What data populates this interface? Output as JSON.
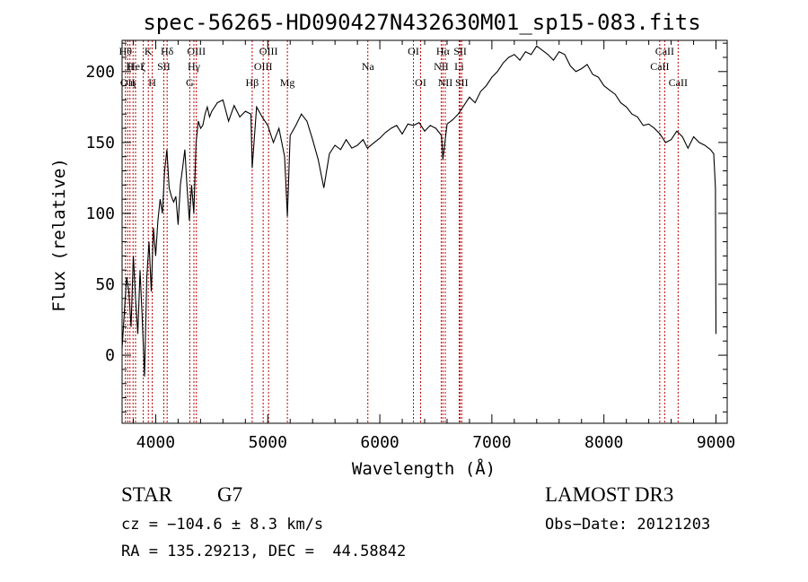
{
  "chart_data": {
    "type": "line",
    "title": "spec-56265-HD090427N432630M01_sp15-083.fits",
    "xlabel": "Wavelength (Å)",
    "ylabel": "Flux (relative)",
    "xlim": [
      3700,
      9100
    ],
    "ylim": [
      -48,
      222
    ],
    "xticks": [
      4000,
      5000,
      6000,
      7000,
      8000,
      9000
    ],
    "yticks": [
      0,
      50,
      100,
      150,
      200
    ],
    "grid": false,
    "series": [
      {
        "x": [
          3700,
          3720,
          3740,
          3760,
          3780,
          3800,
          3820,
          3840,
          3860,
          3880,
          3900,
          3920,
          3940,
          3960,
          3980,
          4000,
          4020,
          4040,
          4060,
          4080,
          4100,
          4120,
          4140,
          4160,
          4180,
          4200,
          4220,
          4240,
          4260,
          4280,
          4300,
          4320,
          4340,
          4360,
          4380,
          4400,
          4420,
          4440,
          4460,
          4480,
          4500,
          4550,
          4600,
          4650,
          4700,
          4750,
          4800,
          4850,
          4861,
          4900,
          4950,
          5000,
          5050,
          5100,
          5150,
          5175,
          5200,
          5250,
          5300,
          5350,
          5400,
          5450,
          5500,
          5550,
          5600,
          5650,
          5700,
          5750,
          5800,
          5850,
          5890,
          5950,
          6000,
          6050,
          6100,
          6150,
          6200,
          6250,
          6300,
          6350,
          6400,
          6450,
          6500,
          6550,
          6563,
          6600,
          6650,
          6700,
          6750,
          6800,
          6850,
          6900,
          6950,
          7000,
          7050,
          7100,
          7150,
          7200,
          7250,
          7300,
          7350,
          7400,
          7450,
          7500,
          7550,
          7600,
          7650,
          7700,
          7750,
          7800,
          7850,
          7900,
          7950,
          8000,
          8050,
          8100,
          8150,
          8200,
          8250,
          8300,
          8350,
          8400,
          8450,
          8500,
          8550,
          8600,
          8650,
          8700,
          8750,
          8800,
          8850,
          8900,
          8950,
          8980,
          8995,
          9000
        ],
        "y": [
          5,
          30,
          55,
          45,
          20,
          70,
          40,
          15,
          60,
          25,
          -15,
          55,
          80,
          45,
          90,
          70,
          95,
          110,
          100,
          130,
          145,
          118,
          112,
          108,
          112,
          92,
          120,
          132,
          145,
          118,
          95,
          120,
          100,
          150,
          165,
          160,
          162,
          170,
          175,
          168,
          172,
          178,
          180,
          165,
          176,
          168,
          172,
          170,
          132,
          175,
          168,
          162,
          150,
          160,
          140,
          98,
          155,
          162,
          170,
          165,
          152,
          138,
          118,
          142,
          148,
          145,
          152,
          146,
          148,
          152,
          146,
          150,
          153,
          157,
          160,
          162,
          156,
          163,
          162,
          164,
          158,
          162,
          160,
          155,
          138,
          163,
          166,
          170,
          176,
          182,
          178,
          186,
          190,
          196,
          200,
          206,
          210,
          212,
          208,
          214,
          212,
          218,
          215,
          212,
          208,
          214,
          212,
          204,
          200,
          202,
          205,
          198,
          196,
          190,
          187,
          184,
          178,
          175,
          170,
          168,
          162,
          163,
          160,
          156,
          150,
          152,
          158,
          154,
          146,
          154,
          150,
          148,
          145,
          142,
          118,
          15
        ],
        "color": "#000000"
      }
    ],
    "lines": [
      {
        "x": 3730,
        "labels": [
          "Hθ"
        ],
        "row": 1
      },
      {
        "x": 3750,
        "labels": [
          "OII"
        ],
        "row": 3
      },
      {
        "x": 3770,
        "labels": [
          "H"
        ],
        "row": 2
      },
      {
        "x": 3798,
        "labels": [
          "η"
        ],
        "row": 3
      },
      {
        "x": 3820,
        "labels": [
          "HeI"
        ],
        "row": 2
      },
      {
        "x": 3889,
        "labels": [
          "ζ"
        ],
        "row": 2
      },
      {
        "x": 3934,
        "labels": [
          "K"
        ],
        "row": 1
      },
      {
        "x": 3969,
        "labels": [
          "H"
        ],
        "row": 3
      },
      {
        "x": 4072,
        "labels": [
          "SII"
        ],
        "row": 2
      },
      {
        "x": 4102,
        "labels": [
          "Hδ"
        ],
        "row": 1
      },
      {
        "x": 4304,
        "labels": [
          "G"
        ],
        "row": 3
      },
      {
        "x": 4341,
        "labels": [
          "Hγ"
        ],
        "row": 2
      },
      {
        "x": 4363,
        "labels": [
          "OIII"
        ],
        "row": 1
      },
      {
        "x": 4861,
        "labels": [
          "Hβ"
        ],
        "row": 3
      },
      {
        "x": 4959,
        "labels": [
          "OIII"
        ],
        "row": 2
      },
      {
        "x": 5007,
        "labels": [
          "OIII"
        ],
        "row": 1
      },
      {
        "x": 5175,
        "labels": [
          "Mg"
        ],
        "row": 3
      },
      {
        "x": 5893,
        "labels": [
          "Na"
        ],
        "row": 2
      },
      {
        "x": 6300,
        "labels": [
          "OI"
        ],
        "row": 1
      },
      {
        "x": 6364,
        "labels": [
          "OI"
        ],
        "row": 3
      },
      {
        "x": 6548,
        "labels": [
          "NII"
        ],
        "row": 2
      },
      {
        "x": 6563,
        "labels": [
          "Hα"
        ],
        "row": 1
      },
      {
        "x": 6584,
        "labels": [
          "NII"
        ],
        "row": 3
      },
      {
        "x": 6708,
        "labels": [
          "Li"
        ],
        "row": 2
      },
      {
        "x": 6717,
        "labels": [
          "SII"
        ],
        "row": 1
      },
      {
        "x": 6731,
        "labels": [
          "SII"
        ],
        "row": 3
      },
      {
        "x": 8498,
        "labels": [
          "CaII"
        ],
        "row": 2
      },
      {
        "x": 8542,
        "labels": [
          "CaII"
        ],
        "row": 1
      },
      {
        "x": 8662,
        "labels": [
          "CaII"
        ],
        "row": 3
      }
    ]
  },
  "info": {
    "class_label": "STAR",
    "subclass": "G7",
    "survey": "LAMOST DR3",
    "cz": "cz = −104.6 ± 8.3 km/s",
    "obs_date": "Obs−Date: 20121203",
    "radec": "RA = 135.29213, DEC =  44.58842"
  }
}
